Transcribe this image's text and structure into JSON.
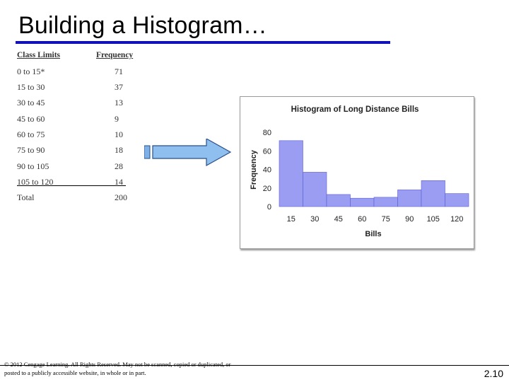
{
  "slide": {
    "title": "Building a Histogram…",
    "copyright": "© 2012 Cengage Learning. All Rights Reserved. May not be scanned, copied or duplicated, or posted to a publicly accessible website, in whole or in part.",
    "page_number": "2.10",
    "accent_color": "#1212b8"
  },
  "table": {
    "headers": {
      "class_limits": "Class Limits",
      "frequency": "Frequency"
    },
    "rows": [
      {
        "limits": "0 to 15*",
        "freq": "71"
      },
      {
        "limits": "15 to 30",
        "freq": "37"
      },
      {
        "limits": "30 to 45",
        "freq": "13"
      },
      {
        "limits": "45 to 60",
        "freq": "9"
      },
      {
        "limits": "60 to 75",
        "freq": "10"
      },
      {
        "limits": "75 to 90",
        "freq": "18"
      },
      {
        "limits": "90 to 105",
        "freq": "28"
      },
      {
        "limits": "105 to 120",
        "freq": "14"
      }
    ],
    "total": {
      "label": "Total",
      "value": "200"
    }
  },
  "arrow": {
    "icon": "right-arrow-icon",
    "color": "#7fb0e8"
  },
  "chart_data": {
    "type": "bar",
    "title": "Histogram of Long Distance Bills",
    "xlabel": "Bills",
    "ylabel": "Frequency",
    "bins": [
      [
        0,
        15
      ],
      [
        15,
        30
      ],
      [
        30,
        45
      ],
      [
        45,
        60
      ],
      [
        60,
        75
      ],
      [
        75,
        90
      ],
      [
        90,
        105
      ],
      [
        105,
        120
      ]
    ],
    "values": [
      71,
      37,
      13,
      9,
      10,
      18,
      28,
      14
    ],
    "xticks": [
      "15",
      "30",
      "45",
      "60",
      "75",
      "90",
      "105",
      "120"
    ],
    "yticks": [
      "0",
      "20",
      "40",
      "60",
      "80"
    ],
    "ylim": [
      0,
      80
    ],
    "bar_color": "#9a9df2",
    "grid": false
  }
}
